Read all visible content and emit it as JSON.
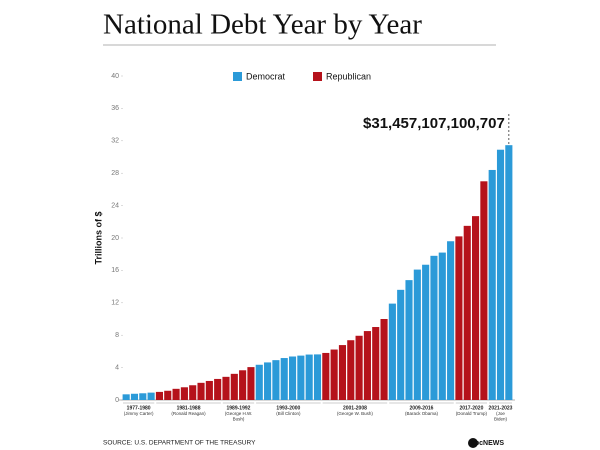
{
  "chart_data": {
    "type": "bar",
    "title": "National Debt Year by Year",
    "y_label": "Trillions of $",
    "annotation": "$31,457,107,100,707",
    "source": "SOURCE: U.S. DEPARTMENT OF THE TREASURY",
    "logo": "abcNEWS",
    "categories": [
      "1977-1980",
      null,
      null,
      null,
      "1981-1988",
      null,
      null,
      null,
      null,
      null,
      null,
      null,
      "1989-1992",
      null,
      null,
      null,
      "1993-2000",
      null,
      null,
      null,
      null,
      null,
      null,
      null,
      "2001-2008",
      null,
      null,
      null,
      null,
      null,
      null,
      null,
      "2009-2016",
      null,
      null,
      null,
      null,
      null,
      null,
      null,
      "2017-2020",
      null,
      null,
      null,
      "2021-2023",
      null,
      null
    ],
    "category_sublabels": [
      "(Jimmy Carter)",
      null,
      null,
      null,
      "(Ronald Reagan)",
      null,
      null,
      null,
      null,
      null,
      null,
      null,
      "(George H.W. Bush)",
      null,
      null,
      null,
      "(Bill Clinton)",
      null,
      null,
      null,
      null,
      null,
      null,
      null,
      "(George W. Bush)",
      null,
      null,
      null,
      null,
      null,
      null,
      null,
      "(Barack Obama)",
      null,
      null,
      null,
      null,
      null,
      null,
      null,
      "(Donald Trump)",
      null,
      null,
      null,
      "(Joe Biden)",
      null,
      null
    ],
    "series": [
      {
        "name": "Democrat",
        "color": "#2b9ad8",
        "values": [
          0.7,
          0.77,
          0.83,
          0.91,
          null,
          null,
          null,
          null,
          null,
          null,
          null,
          null,
          null,
          null,
          null,
          null,
          4.35,
          4.64,
          4.92,
          5.18,
          5.37,
          5.48,
          5.61,
          5.63,
          null,
          null,
          null,
          null,
          null,
          null,
          null,
          null,
          11.9,
          13.6,
          14.8,
          16.1,
          16.7,
          17.8,
          18.2,
          19.6,
          null,
          null,
          null,
          null,
          28.4,
          30.9,
          31.46
        ]
      },
      {
        "name": "Republican",
        "color": "#b5121b",
        "values": [
          null,
          null,
          null,
          null,
          1.0,
          1.14,
          1.38,
          1.57,
          1.82,
          2.12,
          2.35,
          2.6,
          2.86,
          3.23,
          3.67,
          4.06,
          null,
          null,
          null,
          null,
          null,
          null,
          null,
          null,
          5.81,
          6.23,
          6.78,
          7.38,
          7.93,
          8.51,
          9.01,
          10.0,
          null,
          null,
          null,
          null,
          null,
          null,
          null,
          null,
          20.2,
          21.5,
          22.7,
          27.0,
          null,
          null,
          null
        ]
      }
    ],
    "ylim": [
      0,
      40
    ],
    "yticks": [
      0,
      4,
      8,
      12,
      16,
      20,
      24,
      28,
      32,
      36,
      40
    ],
    "legend": "top"
  }
}
